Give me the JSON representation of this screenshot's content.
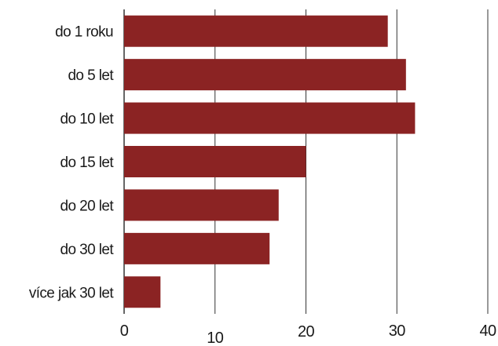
{
  "chart_data": {
    "type": "bar",
    "orientation": "horizontal",
    "categories": [
      "do 1 roku",
      "do 5 let",
      "do 10 let",
      "do 15 let",
      "do 20 let",
      "do 30 let",
      "více jak 30 let"
    ],
    "values": [
      29,
      31,
      32,
      20,
      17,
      16,
      4
    ],
    "xlim": [
      0,
      40
    ],
    "xticks": [
      "0",
      "10",
      "20",
      "30",
      "40"
    ],
    "grid": "vertical",
    "legend": "none",
    "colors": {
      "bar": "#8b2323",
      "grid": "#333333"
    }
  }
}
